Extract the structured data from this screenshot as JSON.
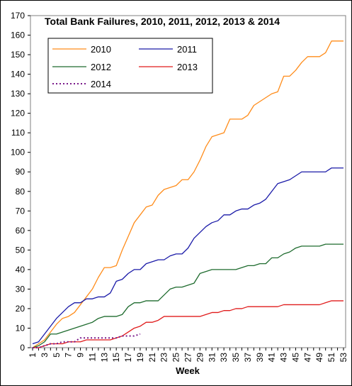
{
  "chart_data": {
    "type": "line",
    "title": "Total Bank Failures, 2010, 2011, 2012, 2013 & 2014",
    "xlabel": "Week",
    "ylabel": "",
    "ylim": [
      0,
      170
    ],
    "yticks": [
      0,
      10,
      20,
      30,
      40,
      50,
      60,
      70,
      80,
      90,
      100,
      110,
      120,
      130,
      140,
      150,
      160,
      170
    ],
    "xlim": [
      1,
      53
    ],
    "xticks": [
      1,
      3,
      5,
      7,
      9,
      11,
      13,
      15,
      17,
      19,
      21,
      23,
      25,
      27,
      29,
      31,
      33,
      35,
      37,
      39,
      41,
      43,
      45,
      47,
      49,
      51,
      53
    ],
    "grid": false,
    "legend_position": "top-left",
    "series": [
      {
        "name": "2010",
        "color": "#ff8c1a",
        "style": "solid",
        "x": [
          1,
          2,
          3,
          4,
          5,
          6,
          7,
          8,
          9,
          10,
          11,
          12,
          13,
          14,
          15,
          16,
          17,
          18,
          19,
          20,
          21,
          22,
          23,
          24,
          25,
          26,
          27,
          28,
          29,
          30,
          31,
          32,
          33,
          34,
          35,
          36,
          37,
          38,
          39,
          40,
          41,
          42,
          43,
          44,
          45,
          46,
          47,
          48,
          49,
          50,
          51,
          52,
          53
        ],
        "values": [
          0,
          2,
          4,
          8,
          12,
          15,
          16,
          18,
          22,
          26,
          30,
          36,
          41,
          41,
          42,
          50,
          57,
          64,
          68,
          72,
          73,
          78,
          81,
          82,
          83,
          86,
          86,
          90,
          96,
          103,
          108,
          109,
          110,
          117,
          117,
          117,
          119,
          124,
          126,
          128,
          130,
          131,
          139,
          139,
          142,
          146,
          149,
          149,
          149,
          151,
          157,
          157,
          157
        ]
      },
      {
        "name": "2011",
        "color": "#1a1aa8",
        "style": "solid",
        "x": [
          1,
          2,
          3,
          4,
          5,
          6,
          7,
          8,
          9,
          10,
          11,
          12,
          13,
          14,
          15,
          16,
          17,
          18,
          19,
          20,
          21,
          22,
          23,
          24,
          25,
          26,
          27,
          28,
          29,
          30,
          31,
          32,
          33,
          34,
          35,
          36,
          37,
          38,
          39,
          40,
          41,
          42,
          43,
          44,
          45,
          46,
          47,
          48,
          49,
          50,
          51,
          52,
          53
        ],
        "values": [
          2,
          3,
          7,
          11,
          15,
          18,
          21,
          23,
          23,
          25,
          25,
          26,
          26,
          28,
          34,
          35,
          38,
          40,
          40,
          43,
          44,
          45,
          45,
          47,
          48,
          48,
          51,
          56,
          59,
          62,
          64,
          65,
          68,
          68,
          70,
          71,
          71,
          73,
          74,
          76,
          80,
          84,
          85,
          86,
          88,
          90,
          90,
          90,
          90,
          90,
          92,
          92,
          92
        ]
      },
      {
        "name": "2012",
        "color": "#1e6b2e",
        "style": "solid",
        "x": [
          1,
          2,
          3,
          4,
          5,
          6,
          7,
          8,
          9,
          10,
          11,
          12,
          13,
          14,
          15,
          16,
          17,
          18,
          19,
          20,
          21,
          22,
          23,
          24,
          25,
          26,
          27,
          28,
          29,
          30,
          31,
          32,
          33,
          34,
          35,
          36,
          37,
          38,
          39,
          40,
          41,
          42,
          43,
          44,
          45,
          46,
          47,
          48,
          49,
          50,
          51,
          52,
          53
        ],
        "values": [
          0,
          1,
          3,
          7,
          7,
          8,
          9,
          10,
          11,
          12,
          13,
          15,
          16,
          16,
          16,
          17,
          21,
          23,
          23,
          24,
          24,
          24,
          27,
          30,
          31,
          31,
          32,
          33,
          38,
          39,
          40,
          40,
          40,
          40,
          40,
          41,
          42,
          42,
          43,
          43,
          46,
          46,
          48,
          49,
          51,
          52,
          52,
          52,
          52,
          53,
          53,
          53,
          53
        ]
      },
      {
        "name": "2013",
        "color": "#e01b1b",
        "style": "solid",
        "x": [
          1,
          2,
          3,
          4,
          5,
          6,
          7,
          8,
          9,
          10,
          11,
          12,
          13,
          14,
          15,
          16,
          17,
          18,
          19,
          20,
          21,
          22,
          23,
          24,
          25,
          26,
          27,
          28,
          29,
          30,
          31,
          32,
          33,
          34,
          35,
          36,
          37,
          38,
          39,
          40,
          41,
          42,
          43,
          44,
          45,
          46,
          47,
          48,
          49,
          50,
          51,
          52,
          53
        ],
        "values": [
          0,
          0,
          1,
          2,
          2,
          2,
          3,
          3,
          3,
          4,
          4,
          4,
          4,
          4,
          5,
          6,
          8,
          10,
          11,
          13,
          13,
          14,
          16,
          16,
          16,
          16,
          16,
          16,
          16,
          17,
          18,
          18,
          19,
          19,
          20,
          20,
          21,
          21,
          21,
          21,
          21,
          21,
          22,
          22,
          22,
          22,
          22,
          22,
          22,
          23,
          24,
          24,
          24
        ]
      },
      {
        "name": "2014",
        "color": "#7a1a8a",
        "style": "dotted",
        "x": [
          1,
          2,
          3,
          4,
          5,
          6,
          7,
          8,
          9,
          10,
          11,
          12,
          13,
          14,
          15,
          16,
          17,
          18,
          19
        ],
        "values": [
          0,
          0,
          1,
          2,
          2,
          3,
          3,
          3,
          5,
          5,
          5,
          5,
          5,
          5,
          5,
          6,
          6,
          6,
          7
        ]
      }
    ]
  }
}
